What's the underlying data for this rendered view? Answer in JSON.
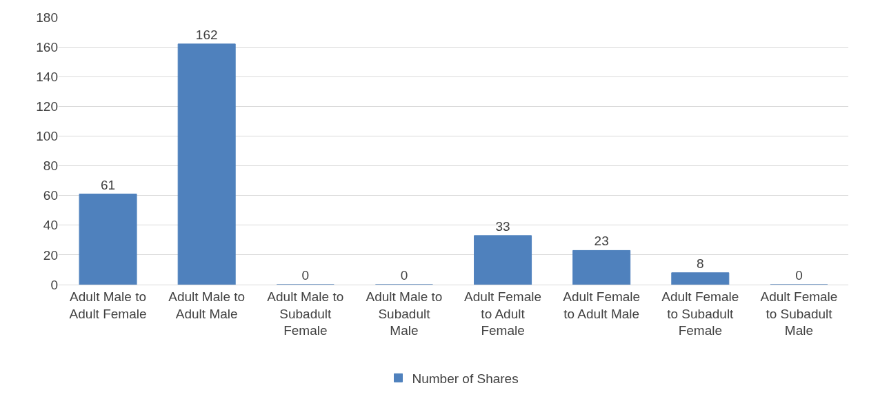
{
  "chart_data": {
    "type": "bar",
    "categories": [
      "Adult Male to Adult Female",
      "Adult Male to Adult Male",
      "Adult Male to Subadult Female",
      "Adult Male to Subadult Male",
      "Adult Female to Adult Female",
      "Adult Female to Adult Male",
      "Adult Female to Subadult Female",
      "Adult Female to Subadult Male"
    ],
    "series": [
      {
        "name": "Number of Shares",
        "color": "#4f81bd",
        "values": [
          61,
          162,
          0,
          0,
          33,
          23,
          8,
          0
        ]
      }
    ],
    "ylim": [
      0,
      180
    ],
    "yticks": [
      0,
      20,
      40,
      60,
      80,
      100,
      120,
      140,
      160,
      180
    ],
    "grid": "y",
    "legend": "bottom",
    "data_labels": true
  }
}
